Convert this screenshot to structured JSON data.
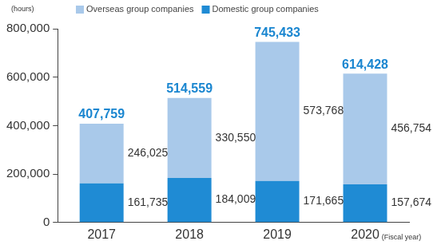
{
  "chart_data": {
    "type": "bar",
    "stacked": true,
    "data_labels": true,
    "grid": false,
    "y_label": "(hours)",
    "x_label": "(Fiscal year)",
    "categories": [
      "2017",
      "2018",
      "2019",
      "2020"
    ],
    "series": [
      {
        "name": "Domestic group companies",
        "color": "#1f8bd4",
        "values": [
          161735,
          184009,
          171665,
          157674
        ],
        "value_labels": [
          "161,735",
          "184,009",
          "171,665",
          "157,674"
        ]
      },
      {
        "name": "Overseas group companies",
        "color": "#a9c9ea",
        "values": [
          246025,
          330550,
          573768,
          456754
        ],
        "value_labels": [
          "246,025",
          "330,550",
          "573,768",
          "456,754"
        ]
      }
    ],
    "totals": {
      "color": "#1a86d0",
      "values": [
        407759,
        514559,
        745433,
        614428
      ],
      "value_labels": [
        "407,759",
        "514,559",
        "745,433",
        "614,428"
      ]
    },
    "ylim": [
      0,
      800000
    ],
    "yticks": [
      0,
      {
        "value": 200000,
        "label": "200,000"
      },
      {
        "value": 400000,
        "label": "400,000"
      },
      {
        "value": 600000,
        "label": "600,000"
      },
      {
        "value": 800000,
        "label": "800,000"
      }
    ]
  }
}
